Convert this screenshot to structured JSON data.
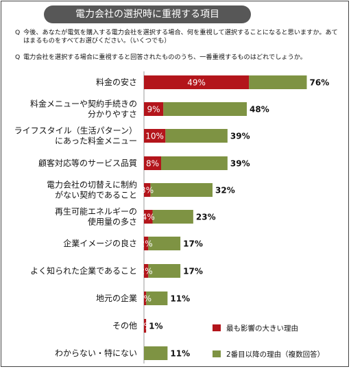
{
  "title": "電力会社の選択時に重視する項目",
  "questions": [
    {
      "mark": "Q",
      "text": "今後、あなたが電気を購入する電力会社を選択する場合、何を重視して選択することになると思いますか。あてはまるものをすべてお選びください。（いくつでも）"
    },
    {
      "mark": "Q",
      "text": "電力会社を選択する場合に重視すると回答されたもののうち、一番重視するものはどれでしょうか。"
    }
  ],
  "colors": {
    "primary": "#B3151B",
    "secondary": "#7E9343"
  },
  "chart_data": {
    "type": "bar",
    "orientation": "horizontal",
    "stacked": true,
    "categories": [
      [
        "料金の安さ"
      ],
      [
        "料金メニューや契約手続きの",
        "分かりやすさ"
      ],
      [
        "ライフスタイル（生活パターン）",
        "にあった料金メニュー"
      ],
      [
        "顧客対応等のサービス品質"
      ],
      [
        "電力会社の切替えに制約",
        "がない契約であること"
      ],
      [
        "再生可能エネルギーの",
        "使用量の多さ"
      ],
      [
        "企業イメージの良さ"
      ],
      [
        "よく知られた企業であること"
      ],
      [
        "地元の企業"
      ],
      [
        "その他"
      ],
      [
        "わからない・特にない"
      ]
    ],
    "series": [
      {
        "name": "最も影響の大きい理由",
        "values": [
          49,
          9,
          10,
          8,
          3,
          4,
          2,
          2,
          1,
          1,
          null
        ]
      },
      {
        "name": "2番目以降の理由（複数回答）",
        "total_labels": [
          76,
          48,
          39,
          39,
          32,
          23,
          17,
          17,
          11,
          1,
          11
        ]
      }
    ],
    "unit": "%",
    "legend_position": "bottom-right"
  }
}
